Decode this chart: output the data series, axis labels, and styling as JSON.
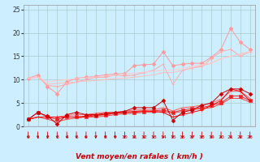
{
  "xlabel": "Vent moyen/en rafales ( km/h )",
  "bg_color": "#cceeff",
  "grid_color": "#aacccc",
  "x_ticks": [
    0,
    1,
    2,
    3,
    4,
    5,
    6,
    7,
    8,
    9,
    10,
    11,
    12,
    13,
    14,
    15,
    16,
    17,
    18,
    19,
    20,
    21,
    22,
    23
  ],
  "ylim": [
    0,
    26
  ],
  "xlim": [
    0,
    23
  ],
  "yticks": [
    0,
    5,
    10,
    15,
    20,
    25
  ],
  "line1_y": [
    10.3,
    11.0,
    8.5,
    7.0,
    9.5,
    10.3,
    10.5,
    10.7,
    11.0,
    11.2,
    11.3,
    13.0,
    13.2,
    13.3,
    16.0,
    13.0,
    13.3,
    13.5,
    13.5,
    14.8,
    16.5,
    21.0,
    18.0,
    16.5
  ],
  "line1_color": "#ff9999",
  "line1_marker": "D",
  "line2_y": [
    10.3,
    10.5,
    8.8,
    8.5,
    9.0,
    9.5,
    10.0,
    10.5,
    10.5,
    11.0,
    10.8,
    11.0,
    11.5,
    12.0,
    13.3,
    9.0,
    12.0,
    12.5,
    12.8,
    14.5,
    16.0,
    16.5,
    15.0,
    16.0
  ],
  "line2_color": "#ffaaaa",
  "line2_marker": "+",
  "line3_y": [
    10.3,
    10.5,
    9.0,
    9.2,
    9.3,
    9.5,
    9.7,
    9.8,
    10.0,
    10.2,
    10.3,
    10.5,
    10.8,
    11.0,
    11.5,
    11.5,
    12.0,
    12.5,
    13.0,
    13.5,
    14.5,
    15.0,
    15.5,
    16.0
  ],
  "line3_color": "#ffbbbb",
  "line3_marker": null,
  "line4_y": [
    10.3,
    10.6,
    9.5,
    9.8,
    10.0,
    10.2,
    10.4,
    10.6,
    10.8,
    11.0,
    11.2,
    11.4,
    11.6,
    11.8,
    12.0,
    12.0,
    12.4,
    12.8,
    13.2,
    13.6,
    14.5,
    15.0,
    15.5,
    16.0
  ],
  "line4_color": "#ffcccc",
  "line4_marker": null,
  "line5_y": [
    1.5,
    3.0,
    2.2,
    0.5,
    2.5,
    3.0,
    2.5,
    2.5,
    2.8,
    3.0,
    3.2,
    4.0,
    4.0,
    4.0,
    5.5,
    1.3,
    3.0,
    3.5,
    4.5,
    5.0,
    7.0,
    8.0,
    8.0,
    7.0
  ],
  "line5_color": "#cc0000",
  "line5_marker": "D",
  "line6_y": [
    1.5,
    2.0,
    2.0,
    2.0,
    2.0,
    2.0,
    2.2,
    2.5,
    2.5,
    2.8,
    3.0,
    3.2,
    3.3,
    3.2,
    3.0,
    2.0,
    2.5,
    3.0,
    3.5,
    4.5,
    5.5,
    8.0,
    7.5,
    5.5
  ],
  "line6_color": "#ff0000",
  "line6_marker": "+",
  "line7_y": [
    1.5,
    3.0,
    2.0,
    1.5,
    2.0,
    2.0,
    2.0,
    2.3,
    2.5,
    2.8,
    3.0,
    3.0,
    3.2,
    3.3,
    3.5,
    3.0,
    3.5,
    3.8,
    4.0,
    4.5,
    5.0,
    6.5,
    6.5,
    5.5
  ],
  "line7_color": "#ee2222",
  "line7_marker": "s",
  "line8_y": [
    1.5,
    2.0,
    1.5,
    1.0,
    1.5,
    1.8,
    2.0,
    2.0,
    2.2,
    2.5,
    2.7,
    2.8,
    3.0,
    3.0,
    3.2,
    2.8,
    3.2,
    3.5,
    3.8,
    4.0,
    4.8,
    6.0,
    6.0,
    5.2
  ],
  "line8_color": "#ee4444",
  "line8_marker": null,
  "line9_y": [
    1.5,
    2.0,
    2.0,
    2.0,
    2.3,
    2.5,
    2.5,
    2.8,
    3.0,
    3.0,
    3.2,
    3.5,
    3.5,
    3.5,
    4.0,
    3.3,
    4.0,
    4.2,
    4.5,
    5.0,
    5.8,
    7.5,
    7.5,
    6.0
  ],
  "line9_color": "#ff5555",
  "line9_marker": null
}
